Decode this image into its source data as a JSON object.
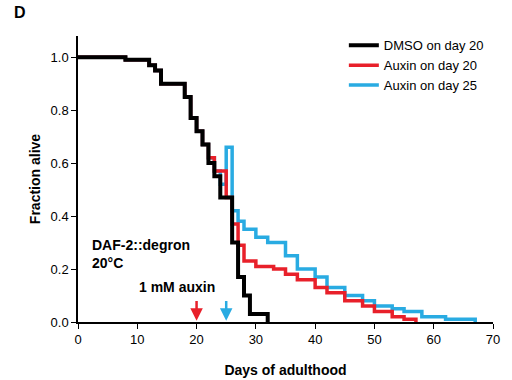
{
  "chart_data": {
    "type": "line",
    "panel": "D",
    "x_label": "Days of adulthood",
    "y_label": "Fraction alive",
    "annotations": [
      "DAF-2::degron",
      "20°C",
      "1 mM auxin"
    ],
    "arrows": [
      {
        "x": 20,
        "color": "#e8202a"
      },
      {
        "x": 25,
        "color": "#29abe2"
      }
    ],
    "line_style": "step",
    "legend": "top-right",
    "grid": false,
    "xlim": [
      0,
      70
    ],
    "xticks": [
      0,
      10,
      20,
      30,
      40,
      50,
      60,
      70
    ],
    "ylim": [
      0,
      1.08
    ],
    "yticks": [
      {
        "value": 0,
        "label": "0.0"
      },
      0.2,
      0.4,
      0.6,
      0.8,
      {
        "value": 1,
        "label": "1.0"
      }
    ],
    "series": [
      {
        "name": "DMSO on day 20",
        "color": "#000000",
        "x": [
          0,
          8,
          12,
          13,
          14,
          18,
          19,
          20,
          21,
          22,
          23,
          24,
          26,
          27,
          28,
          29,
          32
        ],
        "values": [
          1.0,
          0.99,
          0.97,
          0.95,
          0.9,
          0.85,
          0.77,
          0.72,
          0.67,
          0.6,
          0.55,
          0.47,
          0.3,
          0.17,
          0.1,
          0.03,
          0.0
        ]
      },
      {
        "name": "Auxin on day 20",
        "color": "#e8202a",
        "x": [
          0,
          8,
          12,
          13,
          14,
          18,
          19,
          20,
          21,
          22,
          23,
          25,
          26,
          27,
          28,
          30,
          33,
          35,
          37,
          40,
          42,
          45,
          48,
          50,
          53,
          55,
          57
        ],
        "values": [
          1.0,
          0.99,
          0.97,
          0.95,
          0.9,
          0.85,
          0.77,
          0.72,
          0.67,
          0.62,
          0.57,
          0.47,
          0.37,
          0.29,
          0.23,
          0.21,
          0.2,
          0.18,
          0.16,
          0.13,
          0.11,
          0.08,
          0.06,
          0.04,
          0.02,
          0.01,
          0.0
        ]
      },
      {
        "name": "Auxin on day 25",
        "color": "#29abe2",
        "x": [
          0,
          8,
          12,
          13,
          14,
          18,
          19,
          20,
          21,
          22,
          23,
          24,
          25,
          26,
          27,
          28,
          30,
          32,
          35,
          37,
          40,
          42,
          45,
          48,
          50,
          53,
          55,
          58,
          62,
          67
        ],
        "values": [
          1.0,
          0.99,
          0.97,
          0.95,
          0.9,
          0.85,
          0.77,
          0.72,
          0.67,
          0.62,
          0.57,
          0.52,
          0.66,
          0.42,
          0.38,
          0.35,
          0.32,
          0.3,
          0.25,
          0.2,
          0.17,
          0.13,
          0.1,
          0.08,
          0.06,
          0.05,
          0.04,
          0.02,
          0.01,
          0.0
        ]
      }
    ]
  }
}
